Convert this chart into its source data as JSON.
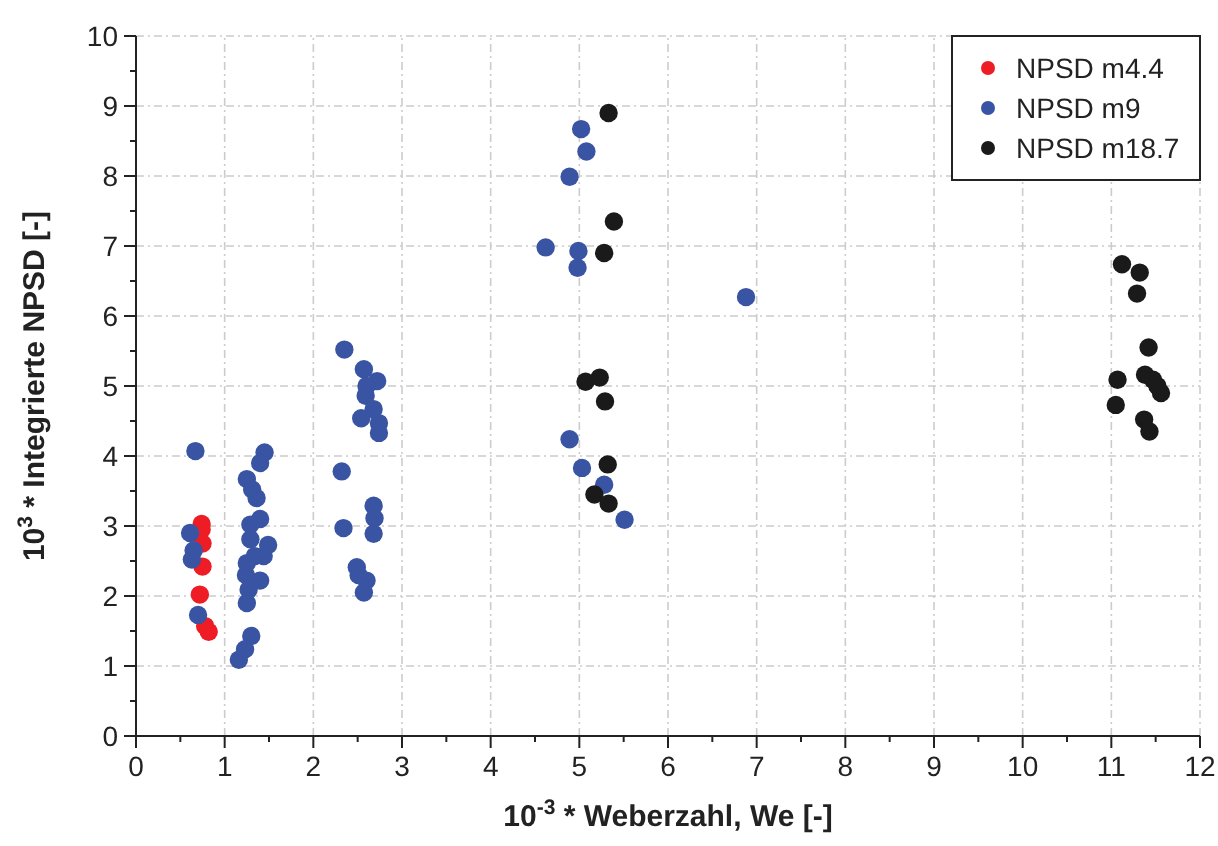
{
  "chart_data": {
    "type": "scatter",
    "xlabel": "10$^{-3}$ * Weberzahl, We [-]",
    "ylabel": "10$^{3}$ * Integrierte NPSD [-]",
    "xlim": [
      0,
      12
    ],
    "ylim": [
      0,
      10
    ],
    "xticks": [
      0,
      {
        "value": 0.5,
        "label": null
      },
      1,
      {
        "value": 1.5,
        "label": null
      },
      2,
      {
        "value": 2.5,
        "label": null
      },
      3,
      {
        "value": 3.5,
        "label": null
      },
      4,
      {
        "value": 4.5,
        "label": null
      },
      5,
      {
        "value": 5.5,
        "label": null
      },
      6,
      {
        "value": 6.5,
        "label": null
      },
      7,
      {
        "value": 7.5,
        "label": null
      },
      8,
      {
        "value": 8.5,
        "label": null
      },
      9,
      {
        "value": 9.5,
        "label": null
      },
      10,
      {
        "value": 10.5,
        "label": null
      },
      11,
      {
        "value": 11.5,
        "label": null
      },
      12
    ],
    "yticks": [
      0,
      {
        "value": 0.5,
        "label": null
      },
      1,
      {
        "value": 1.5,
        "label": null
      },
      2,
      {
        "value": 2.5,
        "label": null
      },
      3,
      {
        "value": 3.5,
        "label": null
      },
      4,
      {
        "value": 4.5,
        "label": null
      },
      5,
      {
        "value": 5.5,
        "label": null
      },
      6,
      {
        "value": 6.5,
        "label": null
      },
      7,
      {
        "value": 7.5,
        "label": null
      },
      8,
      {
        "value": 8.5,
        "label": null
      },
      9,
      {
        "value": 9.5,
        "label": null
      },
      10
    ],
    "grid": true,
    "legend": "top right",
    "marker": "circle",
    "series": [
      {
        "name": "NPSD m4.4",
        "color": "#ee1c24",
        "x": [
          0.74,
          0.74,
          0.75,
          0.75,
          0.72,
          0.78,
          0.82
        ],
        "values": [
          3.03,
          2.95,
          2.75,
          2.42,
          2.02,
          1.57,
          1.49
        ]
      },
      {
        "name": "NPSD m9",
        "color": "#3a54a4",
        "x": [
          0.67,
          0.61,
          0.63,
          0.7,
          0.65,
          1.45,
          1.4,
          1.25,
          1.31,
          1.36,
          1.29,
          1.4,
          1.29,
          1.49,
          1.44,
          1.34,
          1.25,
          1.4,
          1.24,
          1.27,
          1.25,
          1.3,
          1.23,
          1.16,
          2.35,
          2.57,
          2.72,
          2.6,
          2.59,
          2.68,
          2.54,
          2.74,
          2.74,
          2.32,
          2.68,
          2.69,
          2.34,
          2.68,
          2.49,
          2.51,
          2.6,
          2.57,
          5.02,
          5.08,
          4.89,
          4.62,
          4.99,
          4.98,
          4.89,
          5.03,
          5.28,
          5.51,
          6.88
        ],
        "values": [
          4.07,
          2.9,
          2.52,
          1.73,
          2.65,
          4.05,
          3.9,
          3.67,
          3.52,
          3.4,
          3.02,
          3.1,
          2.81,
          2.73,
          2.57,
          2.57,
          2.47,
          2.22,
          2.3,
          2.09,
          1.9,
          1.43,
          1.24,
          1.09,
          5.52,
          5.24,
          5.07,
          5.0,
          4.86,
          4.67,
          4.54,
          4.47,
          4.33,
          3.78,
          3.29,
          3.11,
          2.97,
          2.89,
          2.41,
          2.3,
          2.22,
          2.05,
          8.67,
          8.35,
          7.99,
          6.98,
          6.93,
          6.69,
          4.24,
          3.83,
          3.59,
          3.09,
          6.27
        ]
      },
      {
        "name": "NPSD m18.7",
        "color": "#1a1a1a",
        "x": [
          5.33,
          5.39,
          5.28,
          5.23,
          5.07,
          5.29,
          5.32,
          5.17,
          5.33,
          11.12,
          11.32,
          11.29,
          11.42,
          11.07,
          11.38,
          11.47,
          11.52,
          11.56,
          11.05,
          11.37,
          11.43
        ],
        "values": [
          8.9,
          7.35,
          6.9,
          5.12,
          5.06,
          4.78,
          3.88,
          3.45,
          3.32,
          6.74,
          6.62,
          6.32,
          5.55,
          5.09,
          5.16,
          5.09,
          5.0,
          4.9,
          4.73,
          4.52,
          4.35
        ]
      }
    ]
  }
}
